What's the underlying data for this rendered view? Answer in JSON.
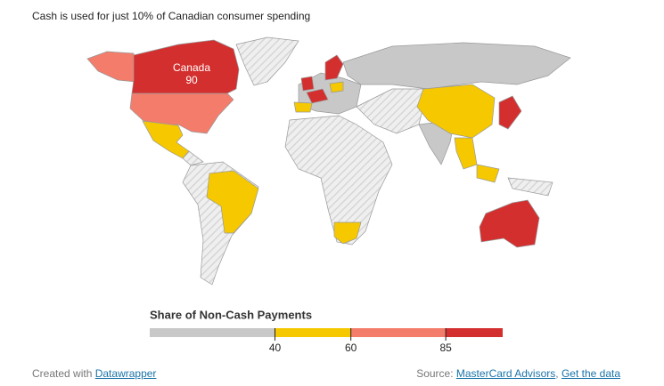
{
  "title": "Cash is used for just 10% of Canadian consumer spending",
  "map": {
    "type": "choropleth",
    "labels": [
      {
        "name": "Canada",
        "value": 90
      }
    ],
    "legend": {
      "title": "Share of Non-Cash Payments",
      "xlim": [
        7,
        100
      ],
      "xticks": [
        40,
        60,
        85
      ],
      "colors": [
        "#c8c8c8",
        "#f5c800",
        "#f47c6b",
        "#d42f2f"
      ]
    }
  },
  "footer": {
    "credit": "Created with",
    "credit_link": "Datawrapper",
    "source": "Source:",
    "source_link": "MasterCard Advisors",
    "separator": ",",
    "data_link": "Get the data"
  }
}
